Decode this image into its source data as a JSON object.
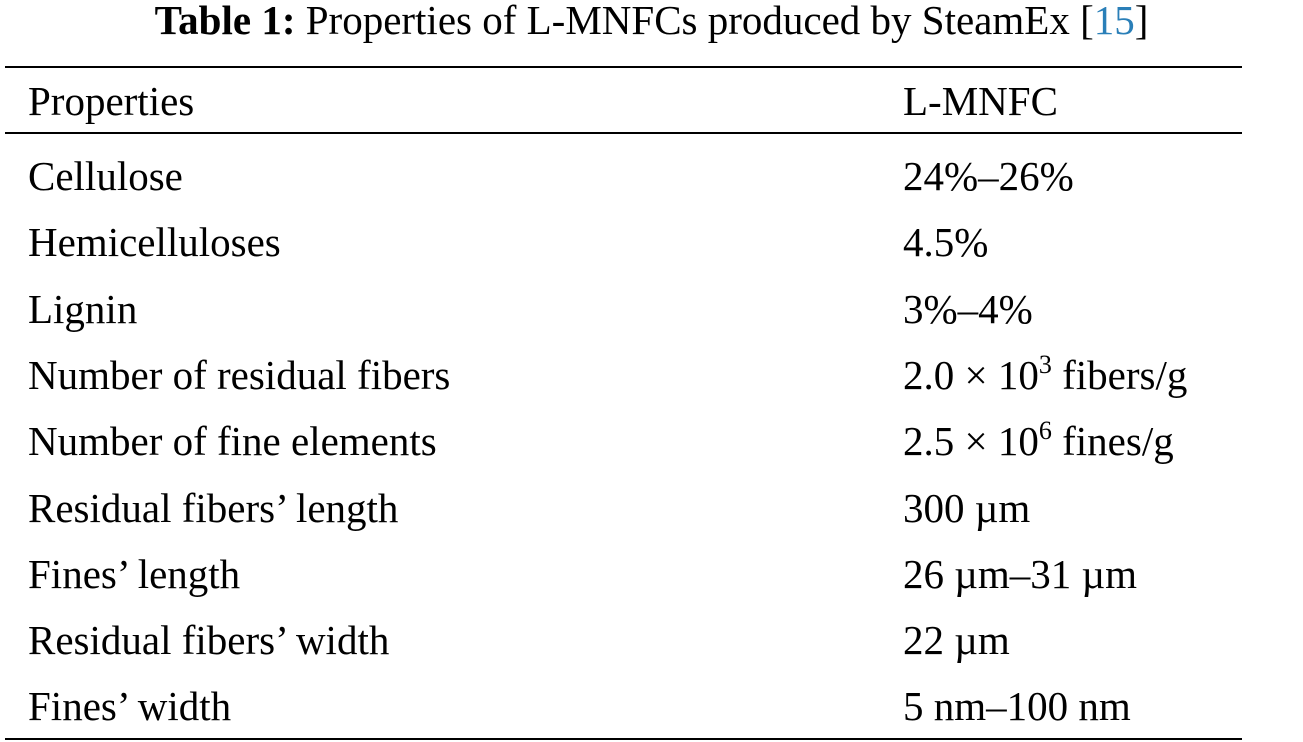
{
  "caption": {
    "label": "Table 1:",
    "text": "Properties of L-MNFCs produced by SteamEx",
    "ref_open": "[",
    "ref": "15",
    "ref_close": "]"
  },
  "table": {
    "headers": [
      "Properties",
      "L-MNFC"
    ],
    "rows": [
      {
        "property": "Cellulose",
        "value": "24%–26%"
      },
      {
        "property": "Hemicelluloses",
        "value": "4.5%"
      },
      {
        "property": "Lignin",
        "value": "3%–4%"
      },
      {
        "property": "Number of residual fibers",
        "value_pre": "2.0 × 10",
        "value_sup": "3",
        "value_post": " fibers/g"
      },
      {
        "property": "Number of fine elements",
        "value_pre": "2.5 × 10",
        "value_sup": "6",
        "value_post": " fines/g"
      },
      {
        "property": "Residual fibers’ length",
        "value": "300 µm"
      },
      {
        "property": "Fines’ length",
        "value": "26 µm–31 µm"
      },
      {
        "property": "Residual fibers’ width",
        "value": "22 µm"
      },
      {
        "property": "Fines’ width",
        "value": "5 nm–100 nm"
      }
    ]
  }
}
